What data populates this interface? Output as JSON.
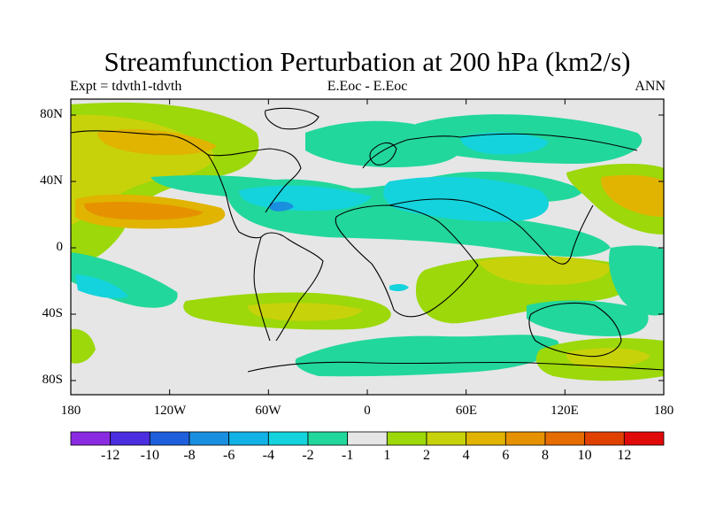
{
  "title": "Streamfunction Perturbation at 200 hPa (km2/s)",
  "subtitle_left": "Expt = tdvth1-tdvth",
  "subtitle_center": "E.Eoc - E.Eoc",
  "subtitle_right": "ANN",
  "lat_labels": [
    "80N",
    "40N",
    "0",
    "40S",
    "80S"
  ],
  "lon_labels": [
    "180",
    "120W",
    "60W",
    "0",
    "60E",
    "120E",
    "180"
  ],
  "colorbar": {
    "labels": [
      "-12",
      "-10",
      "-8",
      "-6",
      "-4",
      "-2",
      "-1",
      "1",
      "2",
      "4",
      "6",
      "8",
      "10",
      "12"
    ],
    "colors": [
      "#8a2be2",
      "#4a2ee0",
      "#1e5fdc",
      "#1a8fe0",
      "#12b2e6",
      "#14d3dc",
      "#22d79c",
      "#e6e6e6",
      "#9cd80a",
      "#c8d20a",
      "#e0b400",
      "#e69200",
      "#e66c00",
      "#e04000",
      "#e00a0a"
    ]
  },
  "colors": {
    "background": "#e6e6e6",
    "coast": "#000000"
  }
}
